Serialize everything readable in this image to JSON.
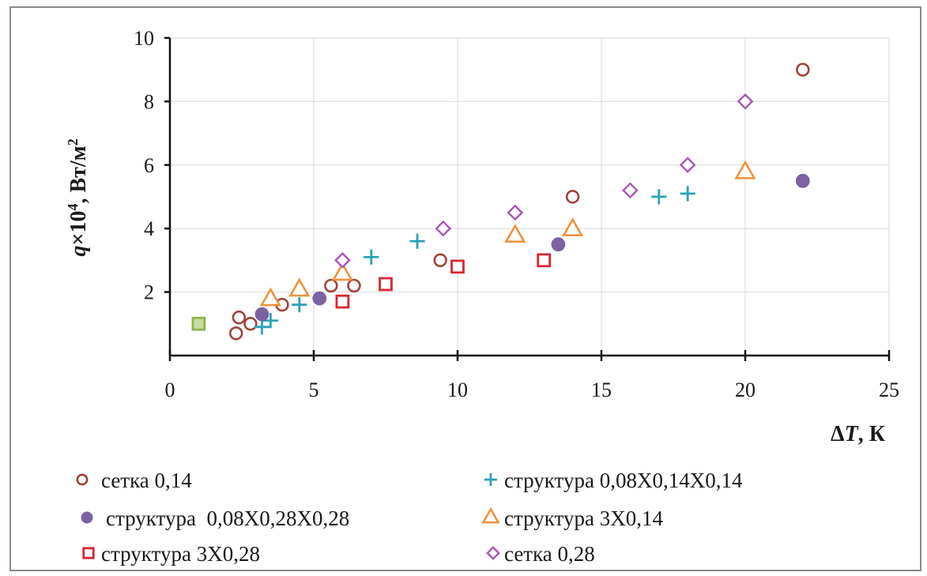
{
  "chart_data": {
    "type": "scatter",
    "xlabel_prefix": "Δ",
    "xlabel_var": "T",
    "xlabel_suffix": ", К",
    "ylabel_var": "q",
    "ylabel_mid": "×10",
    "ylabel_exp": "4",
    "ylabel_suffix": ", Вт/м",
    "ylabel_unit_exp": "2",
    "xlim": [
      0,
      25
    ],
    "ylim": [
      0,
      10
    ],
    "x_ticks": [
      "0",
      "5",
      "10",
      "15",
      "20",
      "25"
    ],
    "y_ticks": [
      "2",
      "4",
      "6",
      "8",
      "10"
    ],
    "grid": true,
    "legend_position": "bottom",
    "series": [
      {
        "name": "сетка 0,14",
        "marker": "circle-open",
        "color": "#a0433c",
        "points": [
          [
            2.3,
            0.7
          ],
          [
            2.4,
            1.2
          ],
          [
            2.8,
            1.0
          ],
          [
            3.9,
            1.6
          ],
          [
            5.6,
            2.2
          ],
          [
            6.4,
            2.2
          ],
          [
            9.4,
            3.0
          ],
          [
            14.0,
            5.0
          ],
          [
            22.0,
            9.0
          ]
        ]
      },
      {
        "name": "структура 0,08Х0,14Х0,14",
        "marker": "plus",
        "color": "#2aa3b8",
        "points": [
          [
            3.2,
            0.9
          ],
          [
            3.5,
            1.1
          ],
          [
            4.5,
            1.6
          ],
          [
            7.0,
            3.1
          ],
          [
            8.6,
            3.6
          ],
          [
            17.0,
            5.0
          ],
          [
            18.0,
            5.1
          ]
        ]
      },
      {
        "name": "структура  0,08Х0,28Х0,28",
        "marker": "circle-filled",
        "color": "#7b62a3",
        "points": [
          [
            3.2,
            1.3
          ],
          [
            5.2,
            1.8
          ],
          [
            13.5,
            3.5
          ],
          [
            22.0,
            5.5
          ]
        ]
      },
      {
        "name": "структура 3Х0,14",
        "marker": "triangle-open",
        "color": "#f0923c",
        "points": [
          [
            3.5,
            1.8
          ],
          [
            4.5,
            2.1
          ],
          [
            6.0,
            2.6
          ],
          [
            12.0,
            3.8
          ],
          [
            14.0,
            4.0
          ],
          [
            20.0,
            5.8
          ]
        ]
      },
      {
        "name": "структура 3Х0,28",
        "marker": "square-open",
        "color": "#d9262e",
        "points": [
          [
            6.0,
            1.7
          ],
          [
            7.5,
            2.25
          ],
          [
            10.0,
            2.8
          ],
          [
            13.0,
            3.0
          ]
        ]
      },
      {
        "name": "сетка 0,28",
        "marker": "diamond-open",
        "color": "#a855b5",
        "points": [
          [
            6.0,
            3.0
          ],
          [
            9.5,
            4.0
          ],
          [
            12.0,
            4.5
          ],
          [
            16.0,
            5.2
          ],
          [
            18.0,
            6.0
          ],
          [
            20.0,
            8.0
          ]
        ]
      },
      {
        "name": "",
        "marker": "square-green",
        "color": "#8db54a",
        "points": [
          [
            1.0,
            1.0
          ]
        ]
      }
    ]
  }
}
